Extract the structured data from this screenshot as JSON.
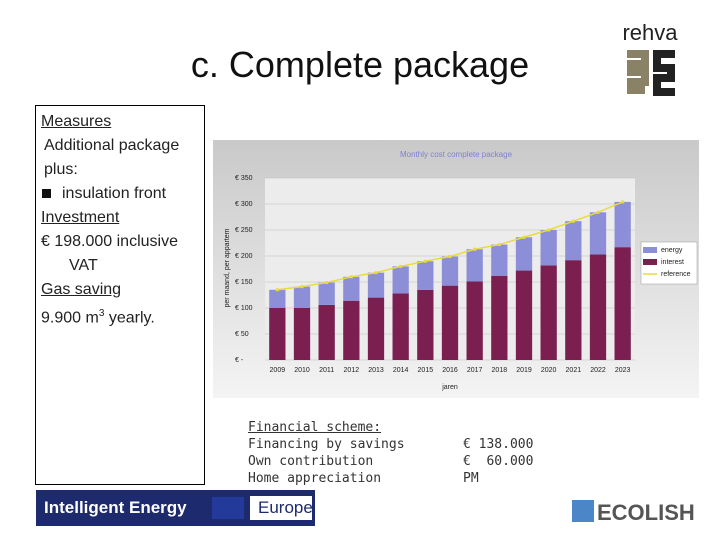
{
  "header": {
    "title": "c. Complete package",
    "logo": "rehva"
  },
  "measures": {
    "items": [
      "Measures",
      "Additional package plus:",
      "insulation front",
      "Investment",
      "€ 198.000 inclusive VAT",
      "Gas saving",
      "9.900 m",
      "3",
      " yearly."
    ]
  },
  "chart_data": {
    "type": "bar",
    "title": "Monthly cost complete package",
    "y_label": "per maand, per appartem",
    "x_label": "jaren",
    "categories": [
      "2009",
      "2010",
      "2011",
      "2012",
      "2013",
      "2014",
      "2015",
      "2016",
      "2017",
      "2018",
      "2019",
      "2020",
      "2021",
      "2022",
      "2023"
    ],
    "series": [
      {
        "name": "energy",
        "color": "#8c8fd8",
        "kind": "bar",
        "values": [
          35,
          41,
          43,
          46,
          48,
          52,
          55,
          56,
          62,
          60,
          64,
          68,
          75,
          81,
          87
        ]
      },
      {
        "name": "interest",
        "color": "#7a1f4f",
        "kind": "bar",
        "values": [
          100,
          100,
          106,
          114,
          120,
          128,
          135,
          143,
          151,
          162,
          172,
          182,
          192,
          203,
          217
        ]
      },
      {
        "name": "reference",
        "color": "#e8dc3a",
        "kind": "line",
        "values": [
          135,
          141,
          149,
          160,
          168,
          180,
          190,
          199,
          213,
          222,
          236,
          250,
          267,
          284,
          304
        ]
      }
    ],
    "stacked": true,
    "ylim": [
      0,
      350
    ],
    "yticks": [
      {
        "value": 0,
        "label": "€ -"
      },
      {
        "value": 50,
        "label": "€ 50"
      },
      {
        "value": 100,
        "label": "€ 100"
      },
      {
        "value": 150,
        "label": "€ 150"
      },
      {
        "value": 200,
        "label": "€ 200"
      },
      {
        "value": 250,
        "label": "€ 250"
      },
      {
        "value": 300,
        "label": "€ 300"
      },
      {
        "value": 350,
        "label": "€ 350"
      }
    ],
    "grid": true,
    "legend": "right"
  },
  "financial": {
    "title": "Financial scheme:",
    "rows": [
      [
        "Financing by savings",
        "€ 138.000"
      ],
      [
        "Own contribution",
        "€  60.000"
      ],
      [
        "Home appreciation",
        "PM"
      ]
    ]
  },
  "footer": {
    "banner_left": "Intelligent Energy",
    "banner_right": "Europe",
    "ecolish": "ECOLISH"
  }
}
